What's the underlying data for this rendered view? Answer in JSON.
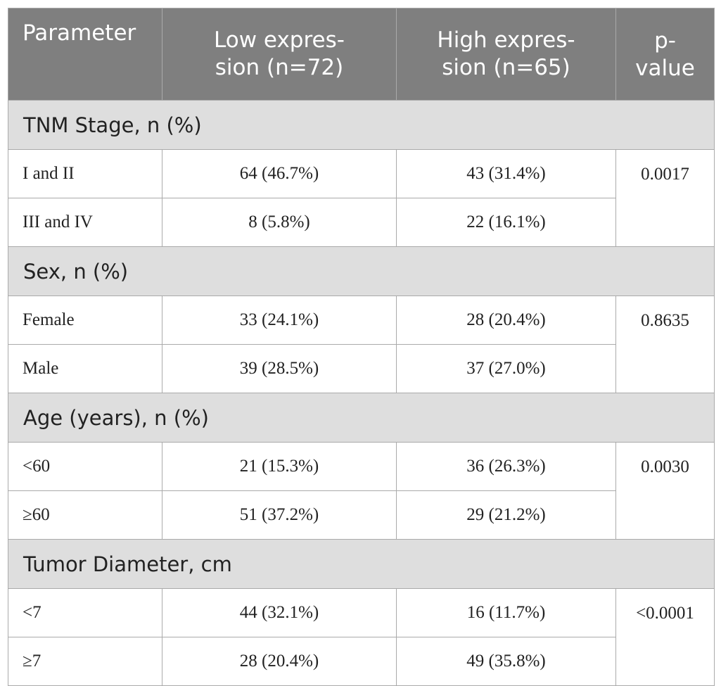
{
  "table": {
    "headers": [
      "Parameter",
      "Low expres-\nsion (n=72)",
      "High expres-\nsion (n=65)",
      "p-\nvalue"
    ],
    "sections": [
      {
        "title": "TNM Stage, n (%)",
        "p_value": "0.0017",
        "rows": [
          {
            "label": "I and II",
            "low": "64 (46.7%)",
            "high": "43 (31.4%)"
          },
          {
            "label": "III and IV",
            "low": "8 (5.8%)",
            "high": "22 (16.1%)"
          }
        ]
      },
      {
        "title": "Sex, n (%)",
        "p_value": "0.8635",
        "rows": [
          {
            "label": "Female",
            "low": "33 (24.1%)",
            "high": "28 (20.4%)"
          },
          {
            "label": "Male",
            "low": "39 (28.5%)",
            "high": "37 (27.0%)"
          }
        ]
      },
      {
        "title": "Age (years), n (%)",
        "p_value": "0.0030",
        "rows": [
          {
            "label": "<60",
            "low": "21 (15.3%)",
            "high": "36 (26.3%)"
          },
          {
            "label": "≥60",
            "low": "51 (37.2%)",
            "high": "29 (21.2%)"
          }
        ]
      },
      {
        "title": "Tumor Diameter, cm",
        "p_value": "<0.0001",
        "rows": [
          {
            "label": "<7",
            "low": "44 (32.1%)",
            "high": "16 (11.7%)"
          },
          {
            "label": "≥7",
            "low": "28 (20.4%)",
            "high": "49 (35.8%)"
          }
        ]
      }
    ]
  },
  "colors": {
    "header_bg": "#7f7f7f",
    "section_bg": "#dedede",
    "border": "#aaaaaa"
  }
}
